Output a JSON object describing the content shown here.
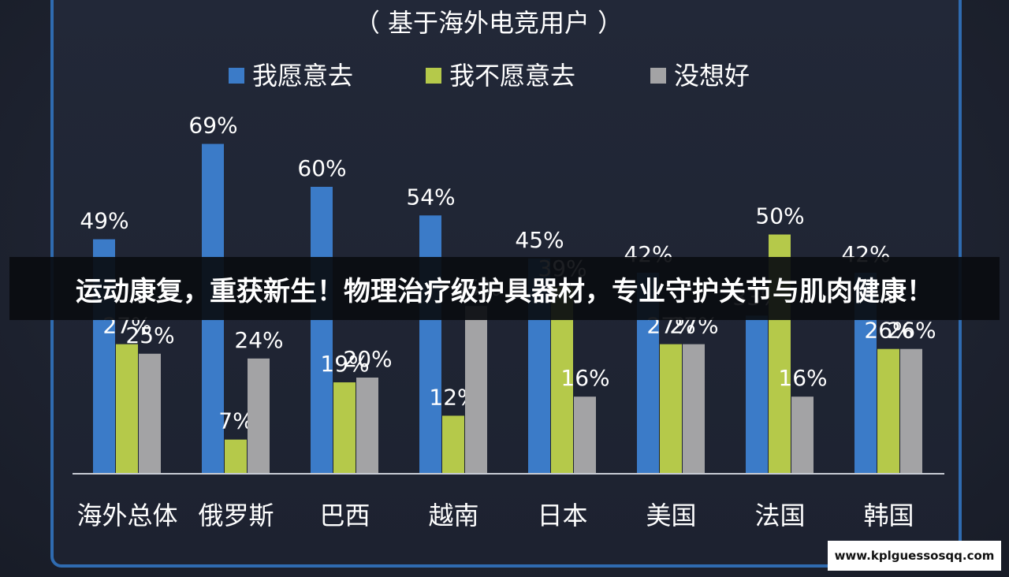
{
  "chart_data": {
    "type": "bar",
    "subtitle": "（ 基于海外电竞用户 ）",
    "legend_position": "top",
    "categories": [
      "海外总体",
      "俄罗斯",
      "巴西",
      "越南",
      "日本",
      "美国",
      "法国",
      "韩国"
    ],
    "series": [
      {
        "name": "我愿意去",
        "color": "#3b7bc8",
        "values": [
          49,
          69,
          60,
          54,
          45,
          42,
          33,
          42
        ]
      },
      {
        "name": "我不愿意去",
        "color": "#b5c94a",
        "values": [
          27,
          7,
          19,
          12,
          39,
          27,
          50,
          26
        ]
      },
      {
        "name": "没想好",
        "color": "#a3a3a5",
        "values": [
          25,
          24,
          20,
          35,
          16,
          27,
          16,
          26
        ]
      }
    ],
    "value_suffix": "%",
    "ylim": [
      0,
      100
    ],
    "grid": false
  },
  "overlay": {
    "banner_text": "运动康复，重获新生！物理治疗级护具器材，专业守护关节与肌肉健康！"
  },
  "watermark": {
    "text": "www.kplguessosqq.com"
  },
  "colors": {
    "background": "#1d2230",
    "frame": "#2f6bb0",
    "text": "#ffffff"
  }
}
